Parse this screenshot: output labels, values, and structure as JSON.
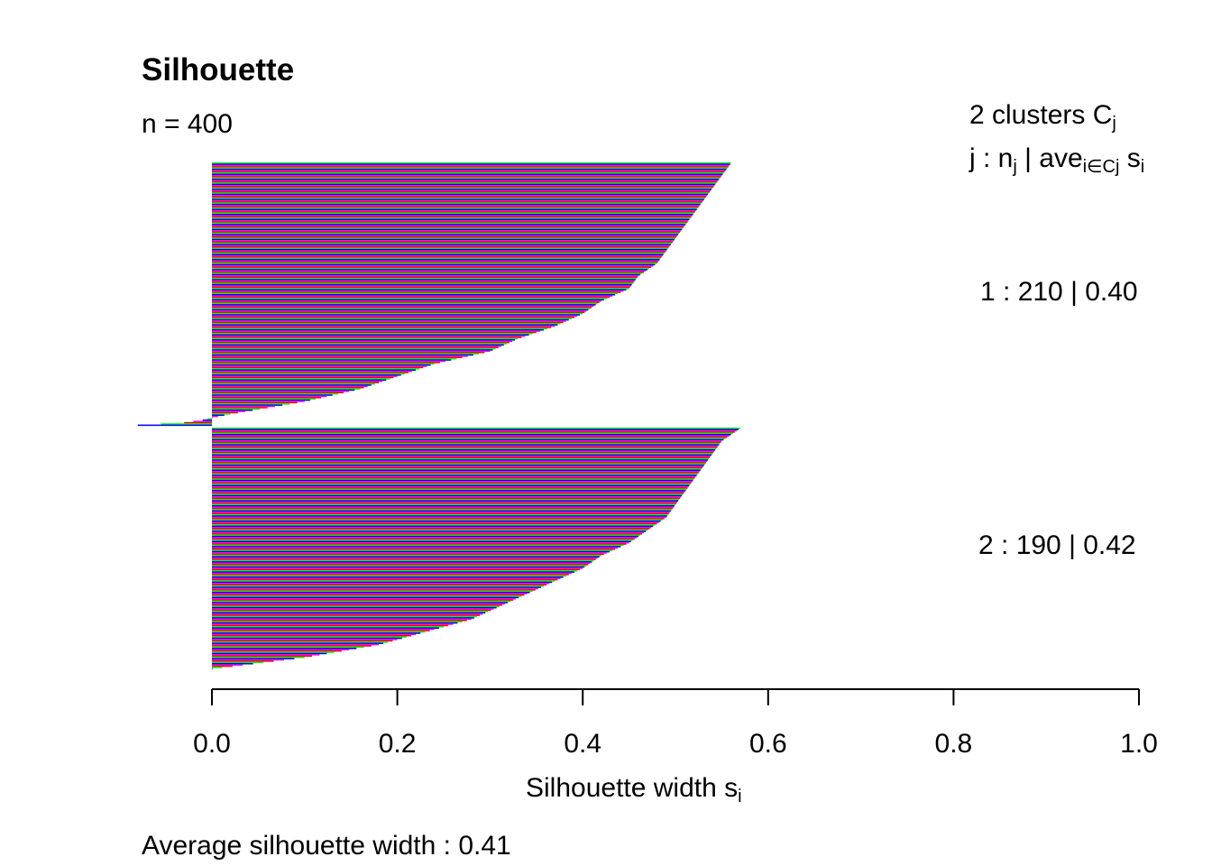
{
  "header": {
    "title": "Silhouette",
    "n_label": "n = 400"
  },
  "legend": {
    "count_text": "2  clusters  C",
    "count_sub": "j",
    "row_prefix": "j :  n",
    "row_sub1": "j",
    "row_mid": " | ave",
    "row_sub2": "i∈Cj",
    "row_end": "  s",
    "row_sub3": "i"
  },
  "axis": {
    "xlabel_main": "Silhouette width s",
    "xlabel_sub": "i"
  },
  "footer": {
    "text": "Average silhouette width :  0.41"
  },
  "chart_data": {
    "type": "bar",
    "orientation": "horizontal",
    "n": 400,
    "xlim": [
      0.0,
      1.0
    ],
    "xticks": [
      "0.0",
      "0.2",
      "0.4",
      "0.6",
      "0.8",
      "1.0"
    ],
    "average_silhouette_width": 0.41,
    "colors": [
      "#00ff00",
      "#0000ff",
      "#ff00ff",
      "#ff0000"
    ],
    "clusters": [
      {
        "id": 1,
        "label": "1 :   210  |  0.40",
        "size": 210,
        "average": 0.4,
        "profile": [
          [
            0,
            0.56
          ],
          [
            10,
            0.55
          ],
          [
            20,
            0.54
          ],
          [
            30,
            0.53
          ],
          [
            40,
            0.52
          ],
          [
            50,
            0.51
          ],
          [
            60,
            0.5
          ],
          [
            70,
            0.49
          ],
          [
            80,
            0.48
          ],
          [
            90,
            0.46
          ],
          [
            100,
            0.45
          ],
          [
            110,
            0.42
          ],
          [
            120,
            0.4
          ],
          [
            130,
            0.37
          ],
          [
            140,
            0.33
          ],
          [
            150,
            0.3
          ],
          [
            160,
            0.24
          ],
          [
            170,
            0.2
          ],
          [
            180,
            0.16
          ],
          [
            190,
            0.1
          ],
          [
            200,
            0.02
          ],
          [
            203,
            0.0
          ],
          [
            205,
            -0.01
          ],
          [
            207,
            -0.03
          ],
          [
            209,
            -0.08
          ]
        ]
      },
      {
        "id": 2,
        "label": "2 :   190  |  0.42",
        "size": 190,
        "average": 0.42,
        "profile": [
          [
            0,
            0.57
          ],
          [
            10,
            0.55
          ],
          [
            20,
            0.54
          ],
          [
            30,
            0.53
          ],
          [
            40,
            0.52
          ],
          [
            50,
            0.51
          ],
          [
            60,
            0.5
          ],
          [
            70,
            0.49
          ],
          [
            80,
            0.47
          ],
          [
            90,
            0.45
          ],
          [
            100,
            0.42
          ],
          [
            110,
            0.4
          ],
          [
            120,
            0.37
          ],
          [
            130,
            0.34
          ],
          [
            140,
            0.31
          ],
          [
            150,
            0.28
          ],
          [
            160,
            0.23
          ],
          [
            170,
            0.18
          ],
          [
            180,
            0.1
          ],
          [
            189,
            0.0
          ]
        ]
      }
    ]
  }
}
